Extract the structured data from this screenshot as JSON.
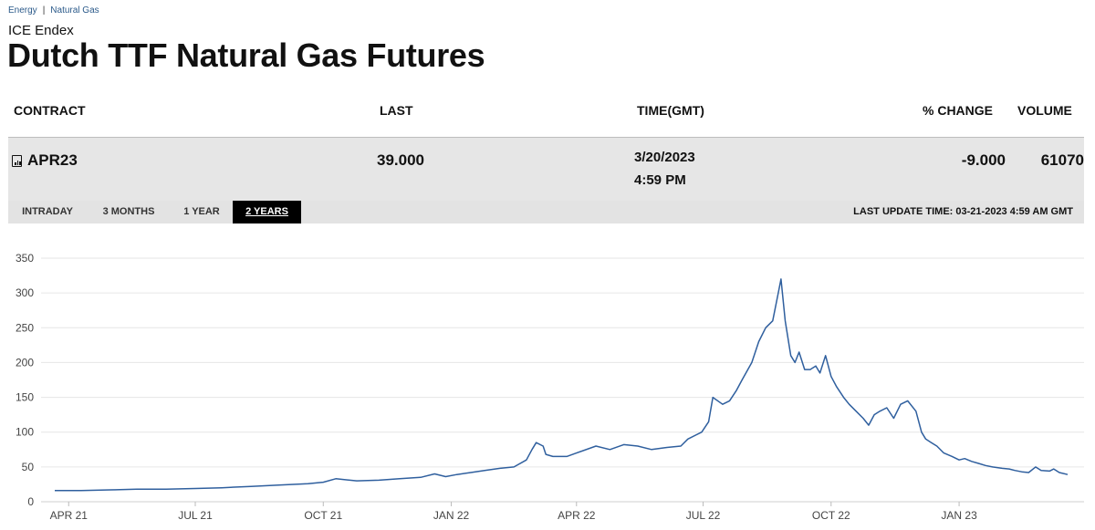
{
  "breadcrumb": {
    "items": [
      "Energy",
      "Natural Gas"
    ],
    "separator": "|"
  },
  "exchange": "ICE Endex",
  "title": "Dutch TTF Natural Gas Futures",
  "table": {
    "headers": {
      "contract": "CONTRACT",
      "last": "LAST",
      "time": "TIME(GMT)",
      "change": "% CHANGE",
      "volume": "VOLUME"
    },
    "row": {
      "contract": "APR23",
      "last": "39.000",
      "date": "3/20/2023",
      "time": "4:59 PM",
      "change": "-9.000",
      "volume": "61070"
    }
  },
  "tabs": [
    "INTRADAY",
    "3 MONTHS",
    "1 YEAR",
    "2 YEARS"
  ],
  "active_tab": "2 YEARS",
  "last_update": "LAST UPDATE TIME: 03-21-2023 4:59 AM GMT",
  "colors": {
    "line": "#2f5f9e",
    "grid": "#e6e6e6",
    "tab_bar": "#e3e3e3",
    "row_bg": "#e6e6e6"
  },
  "chart_data": {
    "type": "line",
    "title": "",
    "xlabel": "",
    "ylabel": "",
    "ylim": [
      0,
      350
    ],
    "yticks": [
      0,
      50,
      100,
      150,
      200,
      250,
      300,
      350
    ],
    "xlim": [
      "2021-03-22",
      "2023-03-20"
    ],
    "xticks": [
      {
        "label": "APR 21",
        "date": "2021-04-01"
      },
      {
        "label": "JUL 21",
        "date": "2021-07-01"
      },
      {
        "label": "OCT 21",
        "date": "2021-10-01"
      },
      {
        "label": "JAN 22",
        "date": "2022-01-01"
      },
      {
        "label": "APR 22",
        "date": "2022-04-01"
      },
      {
        "label": "JUL 22",
        "date": "2022-07-01"
      },
      {
        "label": "OCT 22",
        "date": "2022-10-01"
      },
      {
        "label": "JAN 23",
        "date": "2023-01-01"
      }
    ],
    "grid": true,
    "series": [
      {
        "x": [
          "2021-03-22",
          "2021-04-10",
          "2021-05-01",
          "2021-05-20",
          "2021-06-10",
          "2021-07-01",
          "2021-07-20",
          "2021-08-10",
          "2021-08-30",
          "2021-09-20",
          "2021-10-01",
          "2021-10-10",
          "2021-10-25",
          "2021-11-10",
          "2021-11-25",
          "2021-12-10",
          "2021-12-20",
          "2021-12-28",
          "2022-01-05",
          "2022-01-15",
          "2022-01-25",
          "2022-02-05",
          "2022-02-15",
          "2022-02-24",
          "2022-02-28",
          "2022-03-03",
          "2022-03-08",
          "2022-03-10",
          "2022-03-15",
          "2022-03-25",
          "2022-04-01",
          "2022-04-15",
          "2022-04-25",
          "2022-05-05",
          "2022-05-15",
          "2022-05-25",
          "2022-06-05",
          "2022-06-15",
          "2022-06-20",
          "2022-06-30",
          "2022-07-05",
          "2022-07-08",
          "2022-07-15",
          "2022-07-20",
          "2022-07-25",
          "2022-07-29",
          "2022-08-05",
          "2022-08-10",
          "2022-08-15",
          "2022-08-20",
          "2022-08-24",
          "2022-08-26",
          "2022-08-29",
          "2022-09-02",
          "2022-09-05",
          "2022-09-08",
          "2022-09-12",
          "2022-09-16",
          "2022-09-20",
          "2022-09-23",
          "2022-09-27",
          "2022-10-01",
          "2022-10-05",
          "2022-10-10",
          "2022-10-14",
          "2022-10-19",
          "2022-10-24",
          "2022-10-28",
          "2022-11-01",
          "2022-11-05",
          "2022-11-10",
          "2022-11-15",
          "2022-11-20",
          "2022-11-25",
          "2022-12-01",
          "2022-12-05",
          "2022-12-08",
          "2022-12-12",
          "2022-12-16",
          "2022-12-21",
          "2022-12-27",
          "2023-01-01",
          "2023-01-05",
          "2023-01-10",
          "2023-01-15",
          "2023-01-20",
          "2023-01-25",
          "2023-02-01",
          "2023-02-06",
          "2023-02-10",
          "2023-02-15",
          "2023-02-20",
          "2023-02-25",
          "2023-03-01",
          "2023-03-07",
          "2023-03-10",
          "2023-03-14",
          "2023-03-20"
        ],
        "y": [
          16,
          16,
          17,
          18,
          18,
          19,
          20,
          22,
          24,
          26,
          28,
          33,
          30,
          31,
          33,
          35,
          40,
          36,
          39,
          42,
          45,
          48,
          50,
          60,
          75,
          85,
          80,
          68,
          65,
          65,
          70,
          80,
          75,
          82,
          80,
          75,
          78,
          80,
          90,
          100,
          115,
          150,
          140,
          145,
          160,
          175,
          200,
          230,
          250,
          260,
          300,
          320,
          260,
          210,
          200,
          215,
          190,
          190,
          195,
          185,
          210,
          180,
          165,
          150,
          140,
          130,
          120,
          110,
          125,
          130,
          135,
          120,
          140,
          145,
          130,
          100,
          90,
          85,
          80,
          70,
          65,
          60,
          62,
          58,
          55,
          52,
          50,
          48,
          47,
          45,
          43,
          42,
          50,
          45,
          44,
          47,
          42,
          39
        ]
      }
    ]
  }
}
